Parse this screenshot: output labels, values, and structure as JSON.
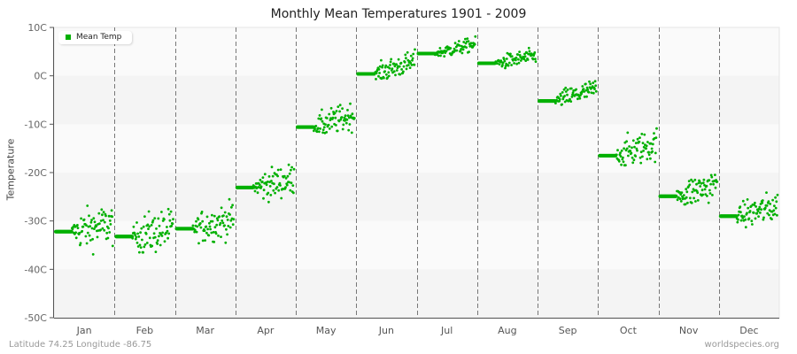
{
  "title": "Monthly Mean Temperatures 1901 - 2009",
  "footer": {
    "left": "Latitude 74.25 Longitude -86.75",
    "right": "worldspecies.org"
  },
  "legend": {
    "label": "Mean Temp",
    "color": "#00b000"
  },
  "chart_data": {
    "type": "scatter",
    "title": "Monthly Mean Temperatures 1901 - 2009",
    "xlabel": "",
    "ylabel": "Temperature",
    "ylim": [
      -50,
      10
    ],
    "yticks": [
      "10C",
      "0C",
      "-10C",
      "-20C",
      "-30C",
      "-40C",
      "-50C"
    ],
    "categories": [
      "Jan",
      "Feb",
      "Mar",
      "Apr",
      "May",
      "Jun",
      "Jul",
      "Aug",
      "Sep",
      "Oct",
      "Nov",
      "Dec"
    ],
    "series": [
      {
        "name": "Mean Temp",
        "color": "#00b000"
      }
    ],
    "monthly_mean": [
      -32.2,
      -33.2,
      -31.6,
      -23.1,
      -10.6,
      0.4,
      4.6,
      2.6,
      -5.2,
      -16.5,
      -24.9,
      -29.0
    ],
    "monthly_spread": [
      3.0,
      3.0,
      2.5,
      2.3,
      2.0,
      1.6,
      1.0,
      1.1,
      1.5,
      2.3,
      2.3,
      2.2
    ],
    "monthly_trend_end": [
      1.5,
      1.5,
      2.0,
      1.8,
      2.5,
      2.5,
      2.0,
      1.5,
      2.5,
      2.5,
      2.5,
      2.0
    ],
    "years": [
      1901,
      2009
    ],
    "grid": {
      "vertical_dashed_month_dividers": true,
      "horizontal_bands": true
    }
  }
}
